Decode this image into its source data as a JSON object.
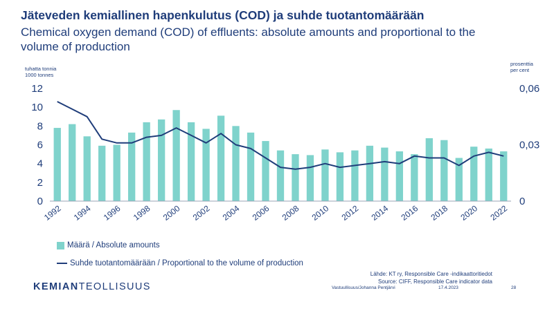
{
  "title_fi": "Jäteveden kemiallinen hapenkulutus (COD) ja suhde tuotantomäärään",
  "title_en": "Chemical oxygen demand (COD) of effluents: absolute amounts and proportional to the volume of production",
  "left_unit": [
    "tuhatta tonnia",
    "1000 tonnes"
  ],
  "right_unit": [
    "prosenttia",
    "per cent"
  ],
  "colors": {
    "bars": "#7fd3cc",
    "line": "#1f3d7a",
    "text": "#1f3d7a"
  },
  "chart_data": {
    "type": "bar",
    "years": [
      1992,
      1993,
      1994,
      1995,
      1996,
      1997,
      1998,
      1999,
      2000,
      2001,
      2002,
      2003,
      2004,
      2005,
      2006,
      2007,
      2008,
      2009,
      2010,
      2011,
      2012,
      2013,
      2014,
      2015,
      2016,
      2017,
      2018,
      2019,
      2020,
      2021,
      2022
    ],
    "x_tick_labels": [
      "1992",
      "1994",
      "1996",
      "1998",
      "2000",
      "2002",
      "2004",
      "2006",
      "2008",
      "2010",
      "2012",
      "2014",
      "2016",
      "2018",
      "2020",
      "2022"
    ],
    "series": [
      {
        "name": "Määrä / Absolute amounts",
        "type": "bar",
        "axis": "left",
        "values": [
          7.8,
          8.2,
          6.9,
          5.9,
          6.0,
          7.3,
          8.4,
          8.7,
          9.7,
          8.4,
          7.7,
          9.1,
          8.0,
          7.3,
          6.4,
          5.4,
          5.0,
          4.9,
          5.5,
          5.2,
          5.4,
          5.9,
          5.7,
          5.3,
          5.0,
          6.7,
          6.5,
          4.6,
          5.8,
          5.6,
          5.3
        ]
      },
      {
        "name": "Suhde tuotantomäärään / Proportional to the volume of production",
        "type": "line",
        "axis": "right",
        "values": [
          0.053,
          0.049,
          0.045,
          0.033,
          0.031,
          0.031,
          0.034,
          0.035,
          0.039,
          0.035,
          0.031,
          0.036,
          0.03,
          0.028,
          0.023,
          0.018,
          0.017,
          0.018,
          0.02,
          0.018,
          0.019,
          0.02,
          0.021,
          0.02,
          0.024,
          0.023,
          0.023,
          0.019,
          0.024,
          0.026,
          0.024
        ]
      }
    ],
    "y_left": {
      "lim": [
        0,
        12
      ],
      "ticks": [
        0,
        2,
        4,
        6,
        8,
        10,
        12
      ],
      "tick_labels": [
        "0",
        "2",
        "4",
        "6",
        "8",
        "10",
        "12"
      ]
    },
    "y_right": {
      "lim": [
        0,
        0.06
      ],
      "ticks": [
        0,
        0.03,
        0.06
      ],
      "tick_labels": [
        "0",
        "0,03",
        "0,06"
      ]
    },
    "grid": false,
    "legend_position": "bottom-left"
  },
  "source_fi": "Lähde: KT ry, Responsible Care -indikaattoritiedot",
  "source_en": "Source: CIFF, Responsible Care indicator data",
  "logo": {
    "bold": "KEMIAN",
    "regular": "TEOLLISUUS"
  },
  "footer": {
    "author": "Vastuullisuus/Johanna Pentjärvi",
    "date": "17.4.2023",
    "page": "28"
  }
}
